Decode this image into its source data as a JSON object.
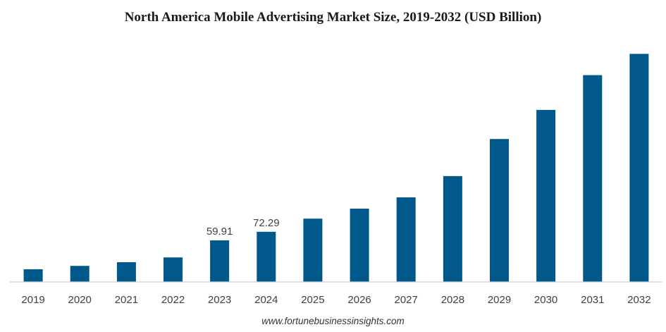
{
  "chart_data": {
    "type": "bar",
    "title": "North America Mobile Advertising Market Size, 2019-2032 (USD Billion)",
    "xlabel": "",
    "ylabel": "",
    "categories": [
      "2019",
      "2020",
      "2021",
      "2022",
      "2023",
      "2024",
      "2025",
      "2026",
      "2027",
      "2028",
      "2029",
      "2030",
      "2031",
      "2032"
    ],
    "values": [
      18.3,
      23.1,
      28.4,
      35.3,
      59.91,
      72.29,
      91.2,
      105.6,
      121.8,
      152.5,
      205.9,
      247.8,
      297.8,
      328.5
    ],
    "data_labels": [
      {
        "index": 4,
        "text": "59.91"
      },
      {
        "index": 5,
        "text": "72.29"
      }
    ],
    "ylim": [
      0,
      335
    ],
    "grid": false,
    "legend": "none",
    "bar_color": "#01598b",
    "axis_color": "#cfcfcf"
  },
  "source": "www.fortunebusinessinsights.com"
}
